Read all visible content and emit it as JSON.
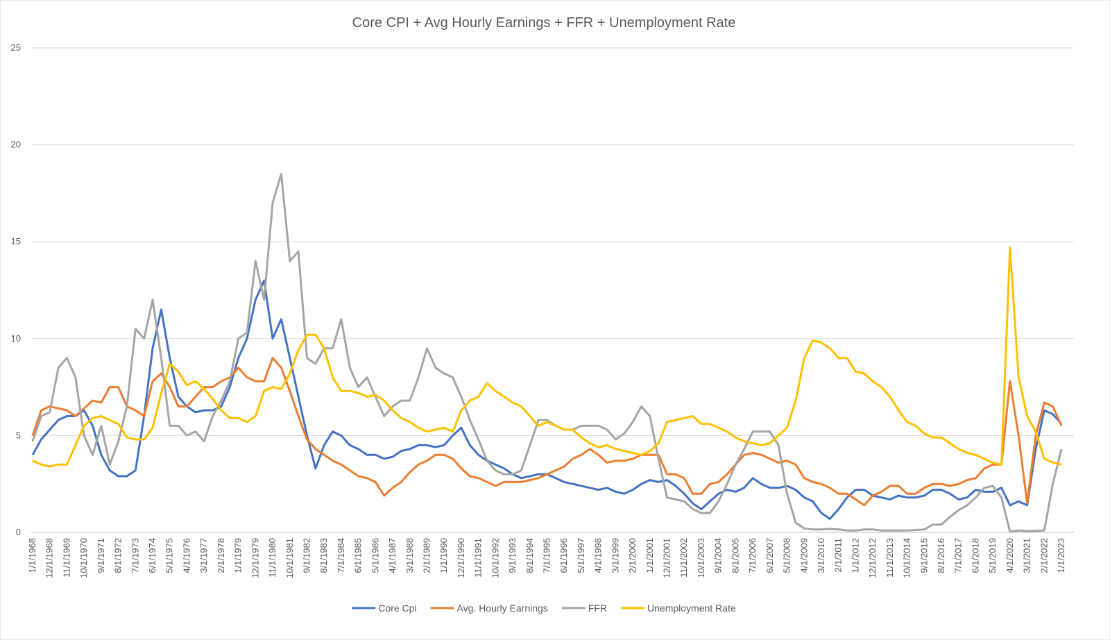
{
  "chart_data": {
    "type": "line",
    "title": "Core CPI + Avg Hourly Earnings + FFR + Unemployment Rate",
    "categories": [
      "1/1/1968",
      null,
      "12/1/1968",
      null,
      "11/1/1969",
      null,
      "10/1/1970",
      null,
      "9/1/1971",
      null,
      "8/1/1972",
      null,
      "7/1/1973",
      null,
      "6/1/1974",
      null,
      "5/1/1975",
      null,
      "4/1/1976",
      null,
      "3/1/1977",
      null,
      "2/1/1978",
      null,
      "1/1/1979",
      null,
      "12/1/1979",
      null,
      "11/1/1980",
      null,
      "10/1/1981",
      null,
      "9/1/1982",
      null,
      "8/1/1983",
      null,
      "7/1/1984",
      null,
      "6/1/1985",
      null,
      "5/1/1986",
      null,
      "4/1/1987",
      null,
      "3/1/1988",
      null,
      "2/1/1989",
      null,
      "1/1/1990",
      null,
      "12/1/1990",
      null,
      "11/1/1991",
      null,
      "10/1/1992",
      null,
      "9/1/1993",
      null,
      "8/1/1994",
      null,
      "7/1/1995",
      null,
      "6/1/1996",
      null,
      "5/1/1997",
      null,
      "4/1/1998",
      null,
      "3/1/1999",
      null,
      "2/1/2000",
      null,
      "1/1/2001",
      null,
      "12/1/2001",
      null,
      "11/1/2002",
      null,
      "10/1/2003",
      null,
      "9/1/2004",
      null,
      "8/1/2005",
      null,
      "7/1/2006",
      null,
      "6/1/2007",
      null,
      "5/1/2008",
      null,
      "4/1/2009",
      null,
      "3/1/2010",
      null,
      "2/1/2011",
      null,
      "1/1/2012",
      null,
      "12/1/2012",
      null,
      "11/1/2013",
      null,
      "10/1/2014",
      null,
      "9/1/2015",
      null,
      "8/1/2016",
      null,
      "7/1/2017",
      null,
      "6/1/2018",
      null,
      "5/1/2019",
      null,
      "4/1/2020",
      null,
      "3/1/2021",
      null,
      "2/1/2022",
      null,
      "1/1/2023"
    ],
    "series": [
      {
        "name": "Core Cpi",
        "color": "#4472c4",
        "values": [
          4.0,
          4.8,
          5.3,
          5.8,
          6.0,
          6.0,
          6.3,
          5.5,
          4.0,
          3.2,
          2.9,
          2.9,
          3.2,
          6.0,
          9.5,
          11.5,
          9.0,
          7.0,
          6.5,
          6.2,
          6.3,
          6.3,
          6.5,
          7.5,
          9.0,
          10.0,
          12.0,
          13.0,
          10.0,
          11.0,
          9.0,
          7.0,
          5.0,
          3.3,
          4.5,
          5.2,
          5.0,
          4.5,
          4.3,
          4.0,
          4.0,
          3.8,
          3.9,
          4.2,
          4.3,
          4.5,
          4.5,
          4.4,
          4.5,
          5.0,
          5.4,
          4.5,
          4.0,
          3.7,
          3.5,
          3.3,
          3.0,
          2.8,
          2.9,
          3.0,
          3.0,
          2.8,
          2.6,
          2.5,
          2.4,
          2.3,
          2.2,
          2.3,
          2.1,
          2.0,
          2.2,
          2.5,
          2.7,
          2.6,
          2.7,
          2.4,
          2.0,
          1.5,
          1.2,
          1.6,
          2.0,
          2.2,
          2.1,
          2.3,
          2.8,
          2.5,
          2.3,
          2.3,
          2.4,
          2.2,
          1.8,
          1.6,
          1.0,
          0.7,
          1.2,
          1.8,
          2.2,
          2.2,
          1.9,
          1.8,
          1.7,
          1.9,
          1.8,
          1.8,
          1.9,
          2.2,
          2.2,
          2.0,
          1.7,
          1.8,
          2.2,
          2.1,
          2.1,
          2.3,
          1.4,
          1.6,
          1.4,
          4.3,
          6.3,
          6.1,
          5.6
        ]
      },
      {
        "name": "Avg. Hourly Earnings",
        "color": "#ed7d31",
        "values": [
          5.0,
          6.3,
          6.5,
          6.4,
          6.3,
          6.0,
          6.4,
          6.8,
          6.7,
          7.5,
          7.5,
          6.5,
          6.3,
          6.0,
          7.8,
          8.2,
          7.5,
          6.5,
          6.5,
          7.0,
          7.5,
          7.5,
          7.8,
          8.0,
          8.5,
          8.0,
          7.8,
          7.8,
          9.0,
          8.5,
          7.3,
          6.0,
          4.8,
          4.3,
          4.0,
          3.7,
          3.5,
          3.2,
          2.9,
          2.8,
          2.6,
          1.9,
          2.3,
          2.6,
          3.1,
          3.5,
          3.7,
          4.0,
          4.0,
          3.8,
          3.3,
          2.9,
          2.8,
          2.6,
          2.4,
          2.6,
          2.6,
          2.6,
          2.7,
          2.8,
          3.0,
          3.2,
          3.4,
          3.8,
          4.0,
          4.3,
          4.0,
          3.6,
          3.7,
          3.7,
          3.8,
          4.0,
          4.0,
          4.0,
          3.0,
          3.0,
          2.8,
          2.0,
          2.0,
          2.5,
          2.6,
          3.0,
          3.5,
          4.0,
          4.1,
          4.0,
          3.8,
          3.6,
          3.7,
          3.5,
          2.8,
          2.6,
          2.5,
          2.3,
          2.0,
          2.0,
          1.7,
          1.4,
          1.9,
          2.1,
          2.4,
          2.4,
          2.0,
          2.0,
          2.3,
          2.5,
          2.5,
          2.4,
          2.5,
          2.7,
          2.8,
          3.3,
          3.5,
          3.5,
          7.8,
          5.0,
          1.5,
          5.0,
          6.7,
          6.5,
          5.5
        ]
      },
      {
        "name": "FFR",
        "color": "#a5a5a5",
        "values": [
          4.7,
          6.0,
          6.2,
          8.5,
          9.0,
          8.0,
          5.0,
          4.0,
          5.5,
          3.5,
          4.7,
          6.5,
          10.5,
          10.0,
          12.0,
          9.0,
          5.5,
          5.5,
          5.0,
          5.2,
          4.7,
          6.0,
          6.8,
          7.8,
          10.0,
          10.3,
          14.0,
          12.0,
          17.0,
          18.5,
          14.0,
          14.5,
          9.0,
          8.7,
          9.5,
          9.5,
          11.0,
          8.5,
          7.5,
          8.0,
          7.0,
          6.0,
          6.5,
          6.8,
          6.8,
          8.0,
          9.5,
          8.5,
          8.2,
          8.0,
          7.0,
          5.8,
          4.8,
          3.7,
          3.2,
          3.0,
          3.0,
          3.2,
          4.5,
          5.8,
          5.8,
          5.5,
          5.3,
          5.3,
          5.5,
          5.5,
          5.5,
          5.3,
          4.8,
          5.1,
          5.7,
          6.5,
          6.0,
          3.8,
          1.8,
          1.7,
          1.6,
          1.2,
          1.0,
          1.0,
          1.6,
          2.5,
          3.5,
          4.3,
          5.2,
          5.2,
          5.2,
          4.5,
          2.0,
          0.5,
          0.2,
          0.15,
          0.15,
          0.18,
          0.15,
          0.1,
          0.1,
          0.15,
          0.15,
          0.1,
          0.1,
          0.1,
          0.1,
          0.12,
          0.15,
          0.4,
          0.4,
          0.8,
          1.15,
          1.4,
          1.8,
          2.3,
          2.4,
          1.8,
          0.05,
          0.1,
          0.07,
          0.08,
          0.1,
          2.5,
          4.3
        ]
      },
      {
        "name": "Unemployment Rate",
        "color": "#ffc000",
        "values": [
          3.7,
          3.5,
          3.4,
          3.5,
          3.5,
          4.5,
          5.5,
          5.9,
          6.0,
          5.8,
          5.6,
          4.9,
          4.8,
          4.8,
          5.4,
          7.2,
          8.7,
          8.3,
          7.6,
          7.8,
          7.4,
          6.9,
          6.3,
          5.9,
          5.9,
          5.7,
          6.0,
          7.3,
          7.5,
          7.4,
          8.2,
          9.4,
          10.2,
          10.2,
          9.5,
          8.0,
          7.3,
          7.3,
          7.2,
          7.0,
          7.1,
          6.8,
          6.3,
          5.9,
          5.7,
          5.4,
          5.2,
          5.3,
          5.4,
          5.2,
          6.3,
          6.8,
          7.0,
          7.7,
          7.3,
          7.0,
          6.7,
          6.5,
          6.0,
          5.5,
          5.7,
          5.5,
          5.3,
          5.3,
          4.9,
          4.6,
          4.4,
          4.5,
          4.3,
          4.2,
          4.1,
          4.0,
          4.2,
          4.6,
          5.7,
          5.8,
          5.9,
          6.0,
          5.6,
          5.6,
          5.4,
          5.2,
          4.9,
          4.7,
          4.6,
          4.5,
          4.6,
          5.0,
          5.4,
          6.8,
          9.0,
          9.9,
          9.8,
          9.5,
          9.0,
          9.0,
          8.3,
          8.2,
          7.8,
          7.5,
          7.0,
          6.3,
          5.7,
          5.5,
          5.1,
          4.9,
          4.9,
          4.6,
          4.3,
          4.1,
          4.0,
          3.8,
          3.6,
          3.5,
          14.7,
          8.0,
          6.0,
          5.2,
          3.8,
          3.6,
          3.5
        ]
      }
    ],
    "ylim": [
      0,
      25
    ],
    "yticks": [
      0,
      5,
      10,
      15,
      20,
      25
    ],
    "grid": true,
    "legend": "bottom"
  }
}
